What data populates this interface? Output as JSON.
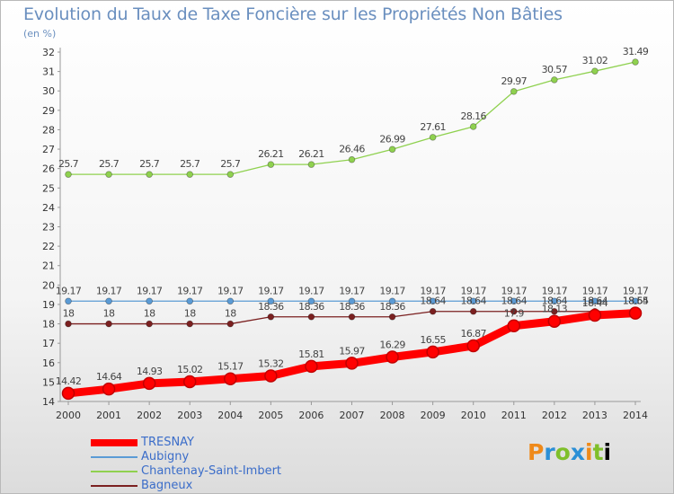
{
  "header": {
    "title": "Evolution du Taux de Taxe Foncière sur les Propriétés Non Bâties",
    "unit": "(en %)"
  },
  "logo": {
    "letters": [
      "P",
      "r",
      "o",
      "x",
      "i",
      "t",
      "i"
    ]
  },
  "chart_data": {
    "type": "line",
    "title": "Evolution du Taux de Taxe Foncière sur les Propriétés Non Bâties",
    "ylabel": "(en %)",
    "xlabel": "",
    "categories": [
      "2000",
      "2001",
      "2002",
      "2003",
      "2004",
      "2005",
      "2006",
      "2007",
      "2008",
      "2009",
      "2010",
      "2011",
      "2012",
      "2013",
      "2014"
    ],
    "ylim": [
      14,
      32
    ],
    "yticks": [
      14,
      15,
      16,
      17,
      18,
      19,
      20,
      21,
      22,
      23,
      24,
      25,
      26,
      27,
      28,
      29,
      30,
      31,
      32
    ],
    "grid": false,
    "legend_position": "bottom-left",
    "series": [
      {
        "name": "TRESNAY",
        "color": "#ff0000",
        "emphasis": true,
        "values": [
          14.42,
          14.64,
          14.93,
          15.02,
          15.17,
          15.32,
          15.81,
          15.97,
          16.29,
          16.55,
          16.87,
          17.9,
          18.13,
          18.44,
          18.55
        ],
        "labels": [
          "14.42",
          "14.64",
          "14.93",
          "15.02",
          "15.17",
          "15.32",
          "15.81",
          "15.97",
          "16.29",
          "16.55",
          "16.87",
          "17.9",
          "18.13",
          "18.44",
          "18.55"
        ]
      },
      {
        "name": "Aubigny",
        "color": "#5b9bd5",
        "values": [
          19.17,
          19.17,
          19.17,
          19.17,
          19.17,
          19.17,
          19.17,
          19.17,
          19.17,
          19.17,
          19.17,
          19.17,
          19.17,
          19.17,
          19.17
        ],
        "labels": [
          "19.17",
          "19.17",
          "19.17",
          "19.17",
          "19.17",
          "19.17",
          "19.17",
          "19.17",
          "19.17",
          "19.17",
          "19.17",
          "19.17",
          "19.17",
          "19.17",
          "19.17"
        ]
      },
      {
        "name": "Chantenay-Saint-Imbert",
        "color": "#8fd14f",
        "values": [
          25.7,
          25.7,
          25.7,
          25.7,
          25.7,
          26.21,
          26.21,
          26.46,
          26.99,
          27.61,
          28.16,
          29.97,
          30.57,
          31.02,
          31.49
        ],
        "labels": [
          "25.7",
          "25.7",
          "25.7",
          "25.7",
          "25.7",
          "26.21",
          "26.21",
          "26.46",
          "26.99",
          "27.61",
          "28.16",
          "29.97",
          "30.57",
          "31.02",
          "31.49"
        ]
      },
      {
        "name": "Bagneux",
        "color": "#7b2020",
        "values": [
          18,
          18,
          18,
          18,
          18,
          18.36,
          18.36,
          18.36,
          18.36,
          18.64,
          18.64,
          18.64,
          18.64,
          18.64,
          18.64
        ],
        "labels": [
          "18",
          "18",
          "18",
          "18",
          "18",
          "18.36",
          "18.36",
          "18.36",
          "18.36",
          "18.64",
          "18.64",
          "18.64",
          "18.64",
          "18.64",
          "18.64"
        ]
      }
    ]
  }
}
